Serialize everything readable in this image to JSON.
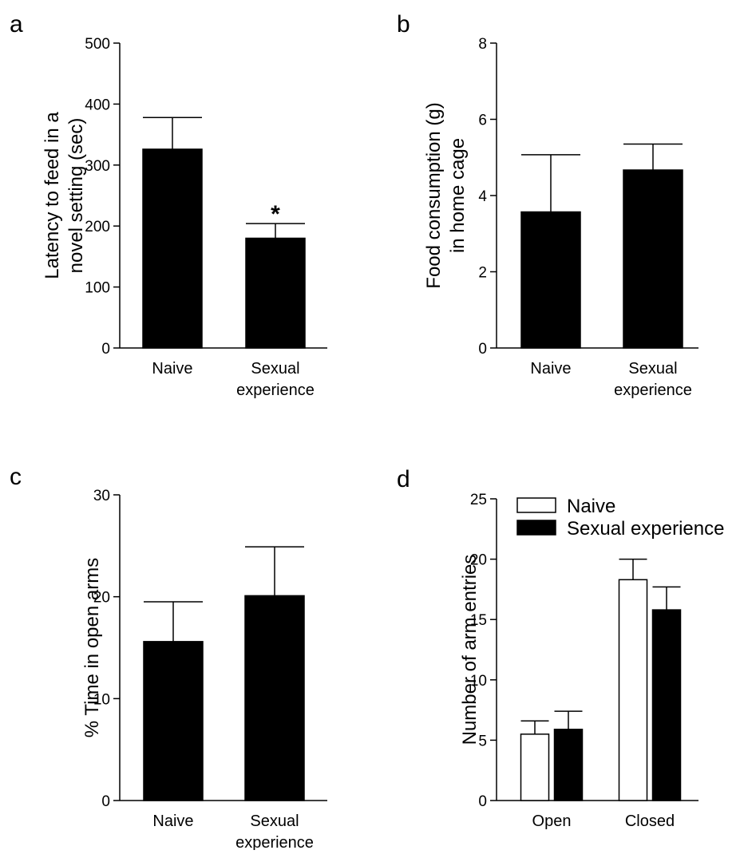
{
  "colors": {
    "naive": "#ffffff",
    "sexual_experience": "#000000",
    "axis": "#000000"
  },
  "chart_data": [
    {
      "panel": "a",
      "type": "bar",
      "ylabel_lines": [
        "Latency to feed in a",
        "novel setting (sec)"
      ],
      "ylim": [
        0,
        500
      ],
      "yticks": [
        0,
        100,
        200,
        300,
        400,
        500
      ],
      "categories": [
        [
          "Naive"
        ],
        [
          "Sexual",
          "experience"
        ]
      ],
      "values": [
        326,
        180
      ],
      "errors": [
        52,
        24
      ],
      "fill": [
        "#000000",
        "#000000"
      ],
      "annotations": [
        "",
        "*"
      ]
    },
    {
      "panel": "b",
      "type": "bar",
      "ylabel_lines": [
        "Food consumption (g)",
        "in home cage"
      ],
      "ylim": [
        0,
        8
      ],
      "yticks": [
        0,
        2,
        4,
        6,
        8
      ],
      "categories": [
        [
          "Naive"
        ],
        [
          "Sexual",
          "experience"
        ]
      ],
      "values": [
        3.57,
        4.67
      ],
      "errors": [
        1.5,
        0.68
      ],
      "fill": [
        "#000000",
        "#000000"
      ],
      "annotations": [
        "",
        ""
      ]
    },
    {
      "panel": "c",
      "type": "bar",
      "ylabel_lines": [
        "% Time in open arms"
      ],
      "ylim": [
        0,
        30
      ],
      "yticks": [
        0,
        10,
        20,
        30
      ],
      "categories": [
        [
          "Naive"
        ],
        [
          "Sexual",
          "experience"
        ]
      ],
      "values": [
        15.6,
        20.1
      ],
      "errors": [
        3.9,
        4.8
      ],
      "fill": [
        "#000000",
        "#000000"
      ],
      "annotations": [
        "",
        ""
      ]
    },
    {
      "panel": "d",
      "type": "bar",
      "ylabel_lines": [
        "Number of arm entries"
      ],
      "ylim": [
        0,
        25
      ],
      "yticks": [
        0,
        5,
        10,
        15,
        20,
        25
      ],
      "categories": [
        "Open",
        "Closed"
      ],
      "legend": "top-left",
      "series": [
        {
          "name": "Naive",
          "values": [
            5.5,
            18.3
          ],
          "errors": [
            1.1,
            1.7
          ]
        },
        {
          "name": "Sexual experience",
          "values": [
            5.9,
            15.8
          ],
          "errors": [
            1.5,
            1.9
          ]
        }
      ]
    }
  ]
}
